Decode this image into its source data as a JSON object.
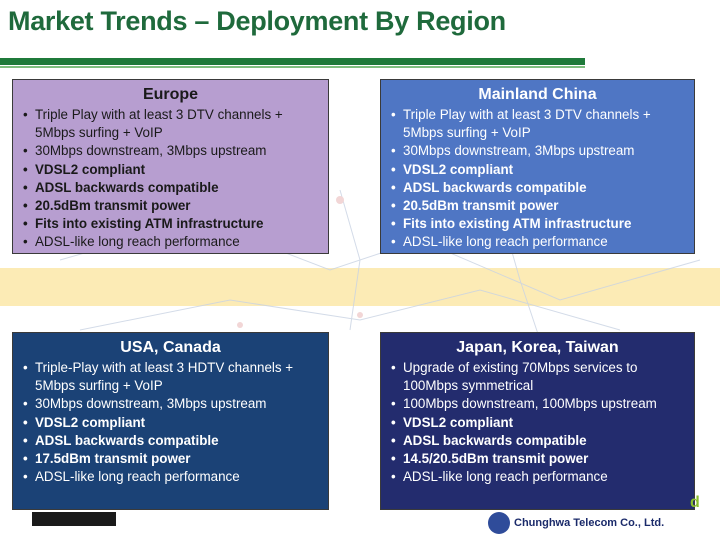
{
  "title": "Market Trends – Deployment By Region",
  "regions": [
    {
      "name": "Europe",
      "bullets": [
        {
          "text": "Triple Play with at least 3 DTV channels + 5Mbps surfing + VoIP",
          "bold": false
        },
        {
          "text": "30Mbps downstream, 3Mbps upstream",
          "bold": false
        },
        {
          "text": "VDSL2 compliant",
          "bold": true
        },
        {
          "text": "ADSL backwards compatible",
          "bold": true
        },
        {
          "text": "20.5dBm transmit power",
          "bold": true
        },
        {
          "text": "Fits into existing ATM infrastructure",
          "bold": true
        },
        {
          "text": "ADSL-like long reach performance",
          "bold": false
        }
      ]
    },
    {
      "name": "Mainland China",
      "bullets": [
        {
          "text": "Triple Play with at least 3 DTV channels + 5Mbps surfing + VoIP",
          "bold": false
        },
        {
          "text": "30Mbps downstream, 3Mbps upstream",
          "bold": false
        },
        {
          "text": "VDSL2 compliant",
          "bold": true
        },
        {
          "text": "ADSL backwards compatible",
          "bold": true
        },
        {
          "text": "20.5dBm transmit power",
          "bold": true
        },
        {
          "text": "Fits into existing ATM infrastructure",
          "bold": true
        },
        {
          "text": "ADSL-like long reach performance",
          "bold": false
        }
      ]
    },
    {
      "name": "USA, Canada",
      "bullets": [
        {
          "text": "Triple-Play with at least 3 HDTV channels + 5Mbps surfing + VoIP",
          "bold": false
        },
        {
          "text": "30Mbps downstream, 3Mbps upstream",
          "bold": false
        },
        {
          "text": "VDSL2 compliant",
          "bold": true
        },
        {
          "text": "ADSL backwards compatible",
          "bold": true
        },
        {
          "text": "17.5dBm transmit power",
          "bold": true
        },
        {
          "text": "ADSL-like long reach performance",
          "bold": false
        }
      ]
    },
    {
      "name": "Japan, Korea, Taiwan",
      "bullets": [
        {
          "text": "Upgrade of existing 70Mbps services to 100Mbps symmetrical",
          "bold": false
        },
        {
          "text": "100Mbps downstream, 100Mbps upstream",
          "bold": false
        },
        {
          "text": "VDSL2 compliant",
          "bold": true
        },
        {
          "text": "ADSL backwards compatible",
          "bold": true
        },
        {
          "text": "14.5/20.5dBm transmit power",
          "bold": true
        },
        {
          "text": "ADSL-like long reach performance",
          "bold": false
        }
      ]
    }
  ],
  "logos": {
    "chunghwa": "Chunghwa Telecom Co., Ltd."
  }
}
